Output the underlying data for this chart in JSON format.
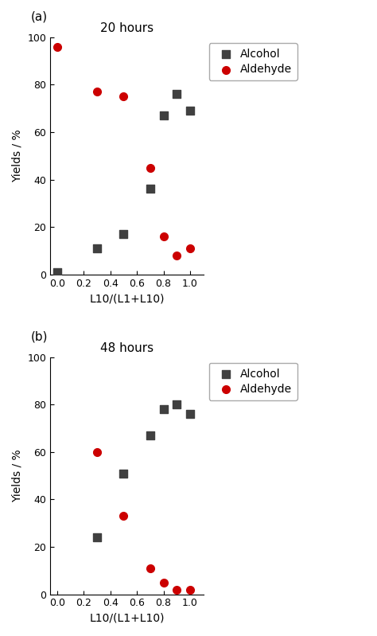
{
  "panel_a": {
    "title": "20 hours",
    "alcohol_x": [
      0.0,
      0.3,
      0.5,
      0.7,
      0.8,
      0.9,
      1.0
    ],
    "alcohol_y": [
      1,
      11,
      17,
      36,
      67,
      76,
      69
    ],
    "aldehyde_x": [
      0.0,
      0.3,
      0.5,
      0.7,
      0.8,
      0.9,
      1.0
    ],
    "aldehyde_y": [
      96,
      77,
      75,
      45,
      16,
      8,
      11
    ]
  },
  "panel_b": {
    "title": "48 hours",
    "alcohol_x": [
      0.3,
      0.5,
      0.7,
      0.8,
      0.9,
      1.0
    ],
    "alcohol_y": [
      24,
      51,
      67,
      78,
      80,
      76
    ],
    "aldehyde_x": [
      0.3,
      0.5,
      0.7,
      0.8,
      0.9,
      1.0
    ],
    "aldehyde_y": [
      60,
      33,
      11,
      5,
      2,
      2
    ]
  },
  "xlabel": "L10/(L1+L10)",
  "ylabel": "Yields / %",
  "ylim": [
    0,
    100
  ],
  "xlim": [
    -0.05,
    1.1
  ],
  "xticks": [
    0.0,
    0.2,
    0.4,
    0.6,
    0.8,
    1.0
  ],
  "yticks": [
    0,
    20,
    40,
    60,
    80,
    100
  ],
  "alcohol_color": "#404040",
  "aldehyde_color": "#cc0000",
  "alcohol_marker": "s",
  "aldehyde_marker": "o",
  "marker_size": 7,
  "legend_alcohol": "Alcohol",
  "legend_aldehyde": "Aldehyde",
  "label_a": "(a)",
  "label_b": "(b)",
  "background_color": "#ffffff",
  "title_fontsize": 11,
  "label_fontsize": 10,
  "tick_fontsize": 9,
  "legend_fontsize": 10
}
